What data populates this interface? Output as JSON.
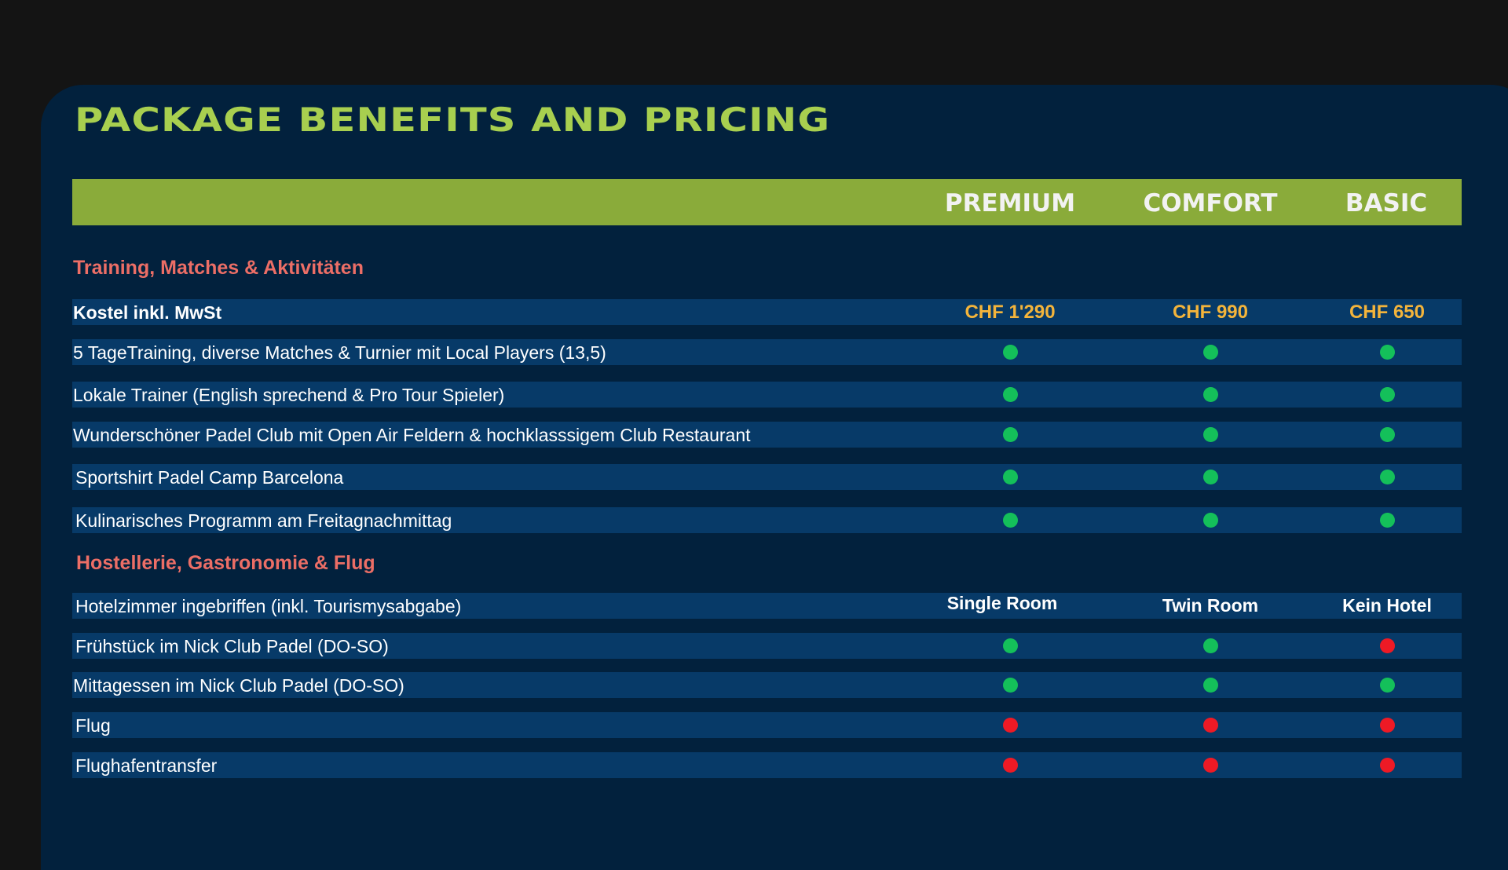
{
  "title": "PACKAGE BENEFITS AND PRICING",
  "columns": [
    "PREMIUM",
    "COMFORT",
    "BASIC"
  ],
  "colors": {
    "yes": "#14c05a",
    "no": "#ee1a25",
    "accent": "#8aab3a",
    "section": "#ec6e66",
    "price": "#f3b43b"
  },
  "sections": [
    {
      "title": "Training, Matches & Aktivitäten",
      "rows": [
        {
          "label": "Kostel inkl. MwSt",
          "values": [
            "CHF 1'290",
            "CHF 990",
            "CHF 650"
          ]
        },
        {
          "label": "5 TageTraining, diverse Matches & Turnier mit Local Players (13,5)",
          "values": [
            "yes",
            "yes",
            "yes"
          ]
        },
        {
          "label": "Lokale Trainer (English sprechend & Pro Tour Spieler)",
          "values": [
            "yes",
            "yes",
            "yes"
          ]
        },
        {
          "label": "Wunderschöner Padel Club mit Open Air Feldern & hochklasssigem Club Restaurant",
          "values": [
            "yes",
            "yes",
            "yes"
          ]
        },
        {
          "label": "Sportshirt Padel Camp Barcelona",
          "values": [
            "yes",
            "yes",
            "yes"
          ]
        },
        {
          "label": "Kulinarisches Programm am Freitagnachmittag",
          "values": [
            "yes",
            "yes",
            "yes"
          ]
        }
      ]
    },
    {
      "title": "Hostellerie, Gastronomie & Flug",
      "rows": [
        {
          "label": "Hotelzimmer ingebriffen (inkl. Tourismysabgabe)",
          "values": [
            "Single Room",
            "Twin Room",
            "Kein Hotel"
          ]
        },
        {
          "label": "Frühstück im Nick Club Padel (DO-SO)",
          "values": [
            "yes",
            "yes",
            "no"
          ]
        },
        {
          "label": "Mittagessen im Nick Club Padel (DO-SO)",
          "values": [
            "yes",
            "yes",
            "yes"
          ]
        },
        {
          "label": "Flug",
          "values": [
            "no",
            "no",
            "no"
          ]
        },
        {
          "label": "Flughafentransfer",
          "values": [
            "no",
            "no",
            "no"
          ]
        }
      ]
    }
  ]
}
